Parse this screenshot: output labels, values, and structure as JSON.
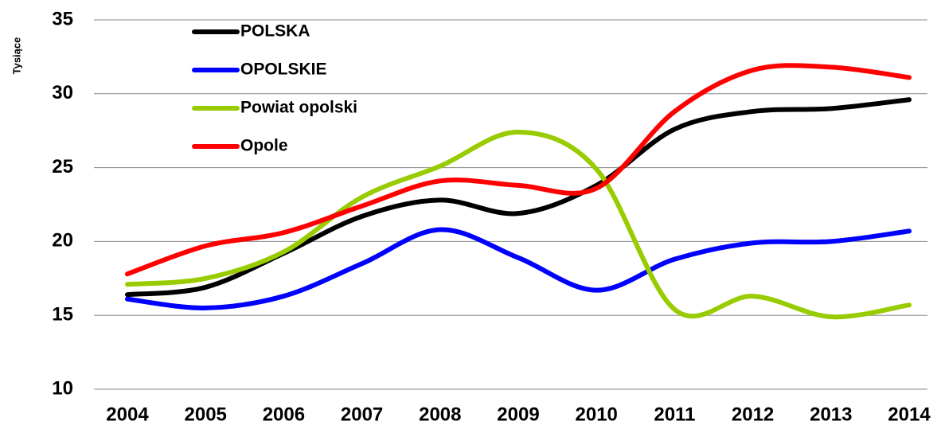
{
  "chart_data": {
    "type": "line",
    "y_label": "Tysiące",
    "categories": [
      "2004",
      "2005",
      "2006",
      "2007",
      "2008",
      "2009",
      "2010",
      "2011",
      "2012",
      "2013",
      "2014"
    ],
    "series": [
      {
        "name": "POLSKA",
        "color": "#000000",
        "values": [
          16.4,
          16.9,
          19.2,
          21.7,
          22.8,
          21.9,
          23.8,
          27.6,
          28.8,
          29.0,
          29.6
        ]
      },
      {
        "name": "OPOLSKIE",
        "color": "#0000ff",
        "values": [
          16.1,
          15.5,
          16.3,
          18.5,
          20.8,
          18.9,
          16.7,
          18.8,
          19.9,
          20.0,
          20.7
        ]
      },
      {
        "name": "Powiat opolski",
        "color": "#99cc00",
        "values": [
          17.1,
          17.5,
          19.3,
          23.0,
          25.1,
          27.4,
          24.9,
          15.4,
          16.3,
          14.9,
          15.7
        ]
      },
      {
        "name": "Opole",
        "color": "#ff0000",
        "values": [
          17.8,
          19.7,
          20.6,
          22.4,
          24.1,
          23.8,
          23.6,
          28.8,
          31.6,
          31.8,
          31.1
        ]
      }
    ],
    "ylim": [
      10,
      35
    ],
    "yticks": [
      10,
      15,
      20,
      25,
      30,
      35
    ],
    "grid": true,
    "smooth": true,
    "legend": "top-left"
  }
}
